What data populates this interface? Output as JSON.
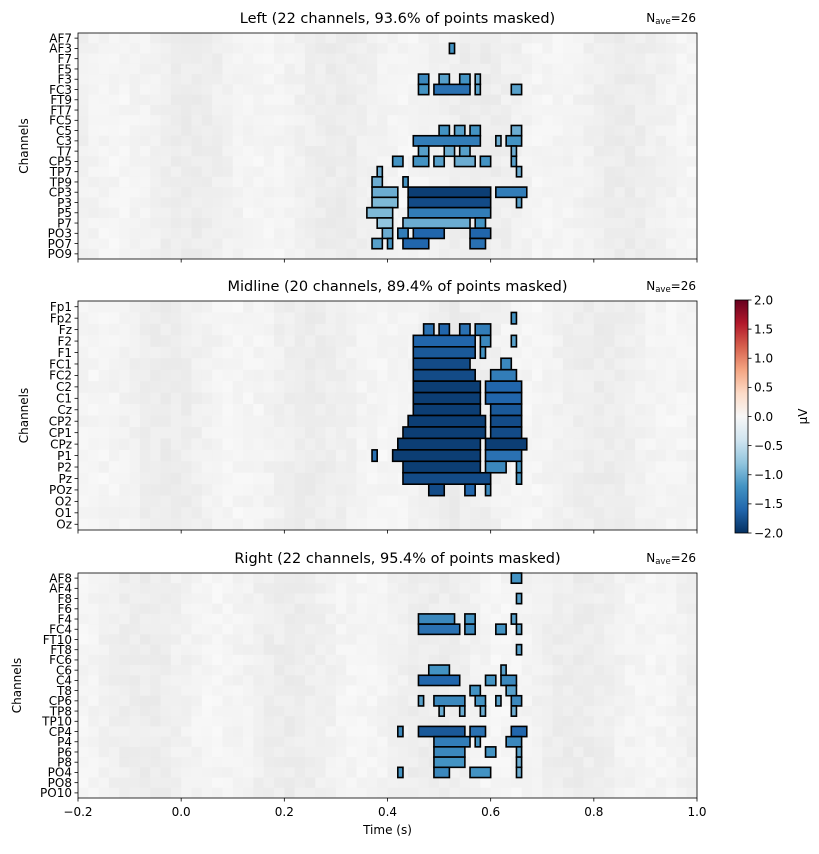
{
  "colors": {
    "cmap_negative": "#053061",
    "cmap_mid": "#f7f7f7",
    "cmap_positive": "#67001f",
    "mask_outline": "#000000",
    "background_gray": "#e6e6e6"
  },
  "chart_data": {
    "type": "heatmap",
    "xlabel": "Time (s)",
    "xlim": [
      -0.2,
      1.0
    ],
    "xticks": [
      "-0.2",
      "0.0",
      "0.2",
      "0.4",
      "0.6",
      "0.8",
      "1.0"
    ],
    "x_tick_values": [
      -0.2,
      0.0,
      0.2,
      0.4,
      0.6,
      0.8,
      1.0
    ],
    "colorbar": {
      "label": "µV",
      "range": [
        -2.0,
        2.0
      ],
      "ticks": [
        "2.0",
        "1.5",
        "1.0",
        "0.5",
        "0.0",
        "−0.5",
        "−1.0",
        "−1.5",
        "−2.0"
      ],
      "tick_values": [
        2.0,
        1.5,
        1.0,
        0.5,
        0.0,
        -0.5,
        -1.0,
        -1.5,
        -2.0
      ]
    },
    "panels": [
      {
        "title": "Left (22 channels, 93.6% of points masked)",
        "nave_prefix": "N",
        "nave_sub": "ave",
        "nave_value": "=26",
        "ylabel": "Channels",
        "channels": [
          "AF7",
          "AF3",
          "F7",
          "F5",
          "F3",
          "FC3",
          "FT9",
          "FT7",
          "FC5",
          "C5",
          "C3",
          "T7",
          "CP5",
          "TP7",
          "TP9",
          "CP3",
          "P3",
          "P5",
          "P7",
          "PO3",
          "PO7",
          "PO9"
        ],
        "significant": [
          {
            "ch": 1,
            "t0": 0.52,
            "t1": 0.53,
            "v": -1.2
          },
          {
            "ch": 4,
            "t0": 0.46,
            "t1": 0.48,
            "v": -1.3
          },
          {
            "ch": 4,
            "t0": 0.5,
            "t1": 0.52,
            "v": -1.1
          },
          {
            "ch": 4,
            "t0": 0.54,
            "t1": 0.56,
            "v": -1.2
          },
          {
            "ch": 4,
            "t0": 0.57,
            "t1": 0.58,
            "v": -1.0
          },
          {
            "ch": 5,
            "t0": 0.46,
            "t1": 0.48,
            "v": -1.2
          },
          {
            "ch": 5,
            "t0": 0.49,
            "t1": 0.56,
            "v": -1.5
          },
          {
            "ch": 5,
            "t0": 0.57,
            "t1": 0.58,
            "v": -1.1
          },
          {
            "ch": 5,
            "t0": 0.64,
            "t1": 0.66,
            "v": -1.1
          },
          {
            "ch": 9,
            "t0": 0.5,
            "t1": 0.52,
            "v": -1.2
          },
          {
            "ch": 9,
            "t0": 0.53,
            "t1": 0.55,
            "v": -1.1
          },
          {
            "ch": 9,
            "t0": 0.56,
            "t1": 0.58,
            "v": -1.2
          },
          {
            "ch": 9,
            "t0": 0.64,
            "t1": 0.66,
            "v": -1.0
          },
          {
            "ch": 10,
            "t0": 0.45,
            "t1": 0.58,
            "v": -1.4
          },
          {
            "ch": 10,
            "t0": 0.61,
            "t1": 0.62,
            "v": -1.0
          },
          {
            "ch": 10,
            "t0": 0.63,
            "t1": 0.66,
            "v": -1.2
          },
          {
            "ch": 11,
            "t0": 0.46,
            "t1": 0.48,
            "v": -1.1
          },
          {
            "ch": 11,
            "t0": 0.51,
            "t1": 0.53,
            "v": -1.0
          },
          {
            "ch": 11,
            "t0": 0.54,
            "t1": 0.56,
            "v": -1.1
          },
          {
            "ch": 11,
            "t0": 0.64,
            "t1": 0.65,
            "v": -1.0
          },
          {
            "ch": 12,
            "t0": 0.41,
            "t1": 0.43,
            "v": -1.2
          },
          {
            "ch": 12,
            "t0": 0.45,
            "t1": 0.48,
            "v": -1.2
          },
          {
            "ch": 12,
            "t0": 0.49,
            "t1": 0.51,
            "v": -1.1
          },
          {
            "ch": 12,
            "t0": 0.53,
            "t1": 0.57,
            "v": -1.0
          },
          {
            "ch": 12,
            "t0": 0.58,
            "t1": 0.6,
            "v": -1.2
          },
          {
            "ch": 12,
            "t0": 0.64,
            "t1": 0.65,
            "v": -1.1
          },
          {
            "ch": 13,
            "t0": 0.38,
            "t1": 0.39,
            "v": -1.0
          },
          {
            "ch": 13,
            "t0": 0.65,
            "t1": 0.66,
            "v": -1.0
          },
          {
            "ch": 14,
            "t0": 0.37,
            "t1": 0.39,
            "v": -1.0
          },
          {
            "ch": 14,
            "t0": 0.43,
            "t1": 0.44,
            "v": -1.2
          },
          {
            "ch": 15,
            "t0": 0.37,
            "t1": 0.42,
            "v": -1.0
          },
          {
            "ch": 15,
            "t0": 0.44,
            "t1": 0.6,
            "v": -1.9
          },
          {
            "ch": 15,
            "t0": 0.61,
            "t1": 0.67,
            "v": -1.4
          },
          {
            "ch": 16,
            "t0": 0.37,
            "t1": 0.42,
            "v": -0.9
          },
          {
            "ch": 16,
            "t0": 0.44,
            "t1": 0.6,
            "v": -1.8
          },
          {
            "ch": 16,
            "t0": 0.65,
            "t1": 0.66,
            "v": -1.1
          },
          {
            "ch": 17,
            "t0": 0.36,
            "t1": 0.41,
            "v": -0.9
          },
          {
            "ch": 17,
            "t0": 0.44,
            "t1": 0.6,
            "v": -1.4
          },
          {
            "ch": 18,
            "t0": 0.38,
            "t1": 0.41,
            "v": -0.8
          },
          {
            "ch": 18,
            "t0": 0.43,
            "t1": 0.56,
            "v": -1.0
          },
          {
            "ch": 18,
            "t0": 0.57,
            "t1": 0.59,
            "v": -1.2
          },
          {
            "ch": 19,
            "t0": 0.39,
            "t1": 0.41,
            "v": -1.0
          },
          {
            "ch": 19,
            "t0": 0.42,
            "t1": 0.44,
            "v": -1.4
          },
          {
            "ch": 19,
            "t0": 0.45,
            "t1": 0.51,
            "v": -1.6
          },
          {
            "ch": 19,
            "t0": 0.56,
            "t1": 0.6,
            "v": -1.6
          },
          {
            "ch": 20,
            "t0": 0.37,
            "t1": 0.39,
            "v": -1.1
          },
          {
            "ch": 20,
            "t0": 0.4,
            "t1": 0.41,
            "v": -1.2
          },
          {
            "ch": 20,
            "t0": 0.43,
            "t1": 0.48,
            "v": -1.6
          },
          {
            "ch": 20,
            "t0": 0.56,
            "t1": 0.59,
            "v": -1.5
          }
        ]
      },
      {
        "title": "Midline (20 channels, 89.4% of points masked)",
        "nave_prefix": "N",
        "nave_sub": "ave",
        "nave_value": "=26",
        "ylabel": "Channels",
        "channels": [
          "Fp1",
          "Fp2",
          "Fz",
          "F2",
          "F1",
          "FC1",
          "FC2",
          "C2",
          "C1",
          "Cz",
          "CP2",
          "CP1",
          "CPz",
          "P1",
          "P2",
          "Pz",
          "POz",
          "O2",
          "O1",
          "Oz"
        ],
        "significant": [
          {
            "ch": 1,
            "t0": 0.64,
            "t1": 0.65,
            "v": -1.2
          },
          {
            "ch": 2,
            "t0": 0.47,
            "t1": 0.49,
            "v": -1.5
          },
          {
            "ch": 2,
            "t0": 0.5,
            "t1": 0.52,
            "v": -1.6
          },
          {
            "ch": 2,
            "t0": 0.54,
            "t1": 0.56,
            "v": -1.5
          },
          {
            "ch": 2,
            "t0": 0.57,
            "t1": 0.6,
            "v": -1.4
          },
          {
            "ch": 3,
            "t0": 0.45,
            "t1": 0.57,
            "v": -1.6
          },
          {
            "ch": 3,
            "t0": 0.58,
            "t1": 0.6,
            "v": -1.3
          },
          {
            "ch": 3,
            "t0": 0.64,
            "t1": 0.65,
            "v": -1.1
          },
          {
            "ch": 4,
            "t0": 0.45,
            "t1": 0.57,
            "v": -1.7
          },
          {
            "ch": 4,
            "t0": 0.58,
            "t1": 0.59,
            "v": -1.2
          },
          {
            "ch": 5,
            "t0": 0.45,
            "t1": 0.56,
            "v": -1.8
          },
          {
            "ch": 5,
            "t0": 0.62,
            "t1": 0.64,
            "v": -1.3
          },
          {
            "ch": 6,
            "t0": 0.45,
            "t1": 0.57,
            "v": -1.8
          },
          {
            "ch": 6,
            "t0": 0.6,
            "t1": 0.65,
            "v": -1.4
          },
          {
            "ch": 7,
            "t0": 0.45,
            "t1": 0.58,
            "v": -1.9
          },
          {
            "ch": 7,
            "t0": 0.59,
            "t1": 0.66,
            "v": -1.6
          },
          {
            "ch": 8,
            "t0": 0.45,
            "t1": 0.58,
            "v": -1.9
          },
          {
            "ch": 8,
            "t0": 0.59,
            "t1": 0.66,
            "v": -1.6
          },
          {
            "ch": 9,
            "t0": 0.45,
            "t1": 0.58,
            "v": -1.9
          },
          {
            "ch": 9,
            "t0": 0.6,
            "t1": 0.66,
            "v": -1.7
          },
          {
            "ch": 10,
            "t0": 0.44,
            "t1": 0.59,
            "v": -1.9
          },
          {
            "ch": 10,
            "t0": 0.6,
            "t1": 0.66,
            "v": -1.8
          },
          {
            "ch": 11,
            "t0": 0.43,
            "t1": 0.59,
            "v": -1.9
          },
          {
            "ch": 11,
            "t0": 0.6,
            "t1": 0.66,
            "v": -1.8
          },
          {
            "ch": 12,
            "t0": 0.42,
            "t1": 0.58,
            "v": -1.9
          },
          {
            "ch": 12,
            "t0": 0.59,
            "t1": 0.67,
            "v": -1.9
          },
          {
            "ch": 13,
            "t0": 0.37,
            "t1": 0.38,
            "v": -1.5
          },
          {
            "ch": 13,
            "t0": 0.41,
            "t1": 0.58,
            "v": -1.9
          },
          {
            "ch": 13,
            "t0": 0.59,
            "t1": 0.66,
            "v": -1.5
          },
          {
            "ch": 14,
            "t0": 0.43,
            "t1": 0.58,
            "v": -1.9
          },
          {
            "ch": 14,
            "t0": 0.59,
            "t1": 0.63,
            "v": -1.3
          },
          {
            "ch": 14,
            "t0": 0.65,
            "t1": 0.66,
            "v": -1.2
          },
          {
            "ch": 15,
            "t0": 0.43,
            "t1": 0.6,
            "v": -1.8
          },
          {
            "ch": 15,
            "t0": 0.65,
            "t1": 0.66,
            "v": -1.2
          },
          {
            "ch": 16,
            "t0": 0.48,
            "t1": 0.51,
            "v": -1.8
          },
          {
            "ch": 16,
            "t0": 0.55,
            "t1": 0.57,
            "v": -1.6
          },
          {
            "ch": 16,
            "t0": 0.59,
            "t1": 0.6,
            "v": -1.3
          }
        ]
      },
      {
        "title": "Right (22 channels, 95.4% of points masked)",
        "nave_prefix": "N",
        "nave_sub": "ave",
        "nave_value": "=26",
        "ylabel": "Channels",
        "channels": [
          "AF8",
          "AF4",
          "F8",
          "F6",
          "F4",
          "FC4",
          "FT10",
          "FT8",
          "FC6",
          "C6",
          "C4",
          "T8",
          "CP6",
          "TP8",
          "TP10",
          "CP4",
          "P4",
          "P6",
          "P8",
          "PO4",
          "PO8",
          "PO10"
        ],
        "significant": [
          {
            "ch": 0,
            "t0": 0.64,
            "t1": 0.66,
            "v": -1.2
          },
          {
            "ch": 2,
            "t0": 0.65,
            "t1": 0.66,
            "v": -1.1
          },
          {
            "ch": 4,
            "t0": 0.46,
            "t1": 0.53,
            "v": -1.3
          },
          {
            "ch": 4,
            "t0": 0.55,
            "t1": 0.57,
            "v": -1.2
          },
          {
            "ch": 4,
            "t0": 0.64,
            "t1": 0.65,
            "v": -1.1
          },
          {
            "ch": 5,
            "t0": 0.46,
            "t1": 0.54,
            "v": -1.5
          },
          {
            "ch": 5,
            "t0": 0.55,
            "t1": 0.57,
            "v": -1.3
          },
          {
            "ch": 5,
            "t0": 0.61,
            "t1": 0.63,
            "v": -1.2
          },
          {
            "ch": 5,
            "t0": 0.65,
            "t1": 0.66,
            "v": -1.1
          },
          {
            "ch": 7,
            "t0": 0.65,
            "t1": 0.66,
            "v": -1.1
          },
          {
            "ch": 9,
            "t0": 0.48,
            "t1": 0.52,
            "v": -1.2
          },
          {
            "ch": 9,
            "t0": 0.62,
            "t1": 0.63,
            "v": -1.1
          },
          {
            "ch": 10,
            "t0": 0.46,
            "t1": 0.54,
            "v": -1.6
          },
          {
            "ch": 10,
            "t0": 0.59,
            "t1": 0.61,
            "v": -1.2
          },
          {
            "ch": 10,
            "t0": 0.62,
            "t1": 0.65,
            "v": -1.3
          },
          {
            "ch": 11,
            "t0": 0.56,
            "t1": 0.58,
            "v": -1.2
          },
          {
            "ch": 11,
            "t0": 0.63,
            "t1": 0.65,
            "v": -1.1
          },
          {
            "ch": 12,
            "t0": 0.46,
            "t1": 0.47,
            "v": -1.1
          },
          {
            "ch": 12,
            "t0": 0.49,
            "t1": 0.55,
            "v": -1.3
          },
          {
            "ch": 12,
            "t0": 0.57,
            "t1": 0.59,
            "v": -1.2
          },
          {
            "ch": 12,
            "t0": 0.61,
            "t1": 0.62,
            "v": -1.1
          },
          {
            "ch": 12,
            "t0": 0.64,
            "t1": 0.66,
            "v": -1.3
          },
          {
            "ch": 13,
            "t0": 0.5,
            "t1": 0.51,
            "v": -1.0
          },
          {
            "ch": 13,
            "t0": 0.54,
            "t1": 0.55,
            "v": -1.0
          },
          {
            "ch": 13,
            "t0": 0.58,
            "t1": 0.59,
            "v": -1.0
          },
          {
            "ch": 13,
            "t0": 0.64,
            "t1": 0.65,
            "v": -1.0
          },
          {
            "ch": 15,
            "t0": 0.42,
            "t1": 0.43,
            "v": -1.3
          },
          {
            "ch": 15,
            "t0": 0.46,
            "t1": 0.55,
            "v": -1.7
          },
          {
            "ch": 15,
            "t0": 0.56,
            "t1": 0.59,
            "v": -1.5
          },
          {
            "ch": 15,
            "t0": 0.64,
            "t1": 0.67,
            "v": -1.6
          },
          {
            "ch": 16,
            "t0": 0.49,
            "t1": 0.56,
            "v": -1.4
          },
          {
            "ch": 16,
            "t0": 0.57,
            "t1": 0.58,
            "v": -1.2
          },
          {
            "ch": 16,
            "t0": 0.63,
            "t1": 0.66,
            "v": -1.3
          },
          {
            "ch": 17,
            "t0": 0.49,
            "t1": 0.55,
            "v": -1.3
          },
          {
            "ch": 17,
            "t0": 0.59,
            "t1": 0.61,
            "v": -1.2
          },
          {
            "ch": 17,
            "t0": 0.65,
            "t1": 0.66,
            "v": -1.1
          },
          {
            "ch": 18,
            "t0": 0.49,
            "t1": 0.55,
            "v": -1.2
          },
          {
            "ch": 18,
            "t0": 0.65,
            "t1": 0.66,
            "v": -1.0
          },
          {
            "ch": 19,
            "t0": 0.42,
            "t1": 0.43,
            "v": -1.2
          },
          {
            "ch": 19,
            "t0": 0.49,
            "t1": 0.52,
            "v": -1.3
          },
          {
            "ch": 19,
            "t0": 0.56,
            "t1": 0.6,
            "v": -1.2
          },
          {
            "ch": 19,
            "t0": 0.65,
            "t1": 0.66,
            "v": -1.0
          }
        ]
      }
    ]
  }
}
